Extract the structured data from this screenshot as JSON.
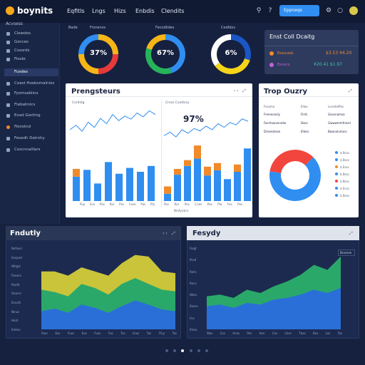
{
  "app": {
    "logo": "boynits"
  },
  "nav": [
    "Eqfitls",
    "Lngs",
    "Hizs",
    "Enbdis",
    "Clendits"
  ],
  "topbar": {
    "primary_button": "Eppneqs",
    "icons": [
      "search-icon",
      "help-icon",
      "settings-icon",
      "notification-icon"
    ]
  },
  "sidebar": {
    "heading": "Acvsess",
    "items": [
      {
        "label": "Clewdos"
      },
      {
        "label": "Gsnces"
      },
      {
        "label": "Cossrds"
      },
      {
        "label": "Fiosbr"
      }
    ],
    "section": "Fusdes",
    "items2": [
      {
        "label": "Coast Hoxbomalnios"
      },
      {
        "label": "Fyomsalkins"
      },
      {
        "label": "Flebahnics"
      },
      {
        "label": "Exad Gocting"
      },
      {
        "label": "Fionstnd"
      },
      {
        "label": "Fesedh Dalrnhy"
      },
      {
        "label": "Coscnnalllars"
      }
    ]
  },
  "donuts": [
    {
      "label_left": "Bade",
      "label_right": "Fronenss",
      "value": "37%",
      "segments": [
        0.25,
        0.25,
        0.25,
        0.25
      ],
      "colors": [
        "#f6b618",
        "#e63a3a",
        "#f6b618",
        "#2f8ef0"
      ]
    },
    {
      "label_left": "",
      "label_right": "Fecodlides",
      "value": "67%",
      "segments": [
        0.45,
        0.35,
        0.2
      ],
      "colors": [
        "#2f8ef0",
        "#27b35a",
        "#f6b618"
      ]
    },
    {
      "label_left": "",
      "label_right": "Cedldos",
      "value": "6%",
      "segments": [
        0.3,
        0.35,
        0.35
      ],
      "colors": [
        "#1a56c4",
        "#f6d41a",
        "#ffffff"
      ]
    }
  ],
  "top_card": {
    "title": "Enst Coll Dcaitg",
    "rows": [
      {
        "label": "Essscads",
        "value": "$3.53 ¥4.20",
        "color": "#f08a2a"
      },
      {
        "label": "Esnocs",
        "value": "¥20.41 $1.97",
        "color": "#c85fe0"
      }
    ]
  },
  "perf_panel": {
    "title": "Prengsteurs",
    "left_label": "Cordidg",
    "right_label": "Cross Couttory",
    "big_value": "97%",
    "x_labels": [
      "Puy",
      "Eco",
      "Pos",
      "Rar",
      "Pos",
      "Cnes",
      "Pos",
      "Pla",
      "Fos",
      "Pos"
    ],
    "footer": "Bisfyvkrs",
    "line1": [
      30,
      36,
      28,
      40,
      33,
      45,
      38,
      50,
      42,
      48,
      44,
      52,
      47,
      55,
      50
    ],
    "line2": [
      24,
      30,
      22,
      34,
      28,
      36,
      32,
      40,
      34,
      44,
      38,
      46,
      42,
      52,
      48
    ],
    "bars_left": [
      {
        "blue": 25,
        "orange": 8
      },
      {
        "blue": 32,
        "orange": 0
      },
      {
        "blue": 18,
        "orange": 0
      },
      {
        "blue": 40,
        "orange": 0
      },
      {
        "blue": 28,
        "orange": 0
      },
      {
        "blue": 34,
        "orange": 0
      },
      {
        "blue": 30,
        "orange": 0
      },
      {
        "blue": 36,
        "orange": 0
      }
    ],
    "bars_right": [
      {
        "blue": 10,
        "orange": 10
      },
      {
        "blue": 36,
        "orange": 8
      },
      {
        "blue": 48,
        "orange": 8
      },
      {
        "blue": 58,
        "orange": 18
      },
      {
        "blue": 35,
        "orange": 12
      },
      {
        "blue": 42,
        "orange": 10
      },
      {
        "blue": 30,
        "orange": 0
      },
      {
        "blue": 40,
        "orange": 10
      },
      {
        "blue": 72,
        "orange": 0
      }
    ]
  },
  "top_quality": {
    "title": "Trop Ouzry",
    "columns": [
      "Fssomo",
      "Elloo",
      "Lessitelflos"
    ],
    "rows": [
      [
        "Fremenesly",
        "Flnfs",
        "Gensnamsa"
      ],
      [
        "Fasnhaavonnbe",
        "Dass",
        "Gwwwmmfnesd"
      ],
      [
        "Dreoesbsse",
        "Elless",
        "Bwacolulrans"
      ]
    ],
    "pie": [
      {
        "value": 35,
        "color": "#f2453d"
      },
      {
        "value": 65,
        "color": "#2f8ef0"
      }
    ],
    "legend": [
      "$ Bcss",
      "$ Bsss",
      "$ Esss",
      "$ Bsss",
      "$ Bsss",
      "$ Ecss",
      "$ Bsss"
    ],
    "legend_colors": [
      "#2f8ef0",
      "#2f8ef0",
      "#f08a2a",
      "#2f8ef0",
      "#f2453d",
      "#2f8ef0",
      "#2f8ef0"
    ]
  },
  "bottom_left": {
    "title": "Fndutly",
    "y_labels": [
      "Befasol",
      "Eoopod",
      "Wtigst",
      "Fiwwcs",
      "Reofd",
      "Oeonsi",
      "Exnofs",
      "Ninus",
      "Hoid",
      "Emtos"
    ],
    "x_labels": [
      "Fiwn",
      "Eos",
      "Fues",
      "Eos",
      "Fues",
      "Fos",
      "Tus",
      "Esos",
      "Tas",
      "Ffuy",
      "Tos"
    ],
    "series": [
      {
        "name": "yellow",
        "color": "#c9c43a",
        "values": [
          70,
          70,
          65,
          75,
          70,
          65,
          80,
          90,
          88,
          70,
          68
        ]
      },
      {
        "name": "green",
        "color": "#2aa86a",
        "values": [
          48,
          45,
          40,
          55,
          50,
          42,
          55,
          62,
          55,
          48,
          46
        ]
      },
      {
        "name": "blue",
        "color": "#2a6fd8",
        "values": [
          22,
          25,
          20,
          30,
          26,
          20,
          28,
          35,
          30,
          24,
          22
        ]
      }
    ]
  },
  "bottom_right": {
    "title": "Fesydy",
    "legend": "Bcsssee",
    "y_labels": [
      "Fiogt",
      "Posd",
      "Rohs",
      "Rons",
      "Woss",
      "Rosos",
      "Fos",
      "Rlsso"
    ],
    "x_labels": [
      "Wos",
      "Cos",
      "Anos",
      "Pos",
      "Hen",
      "Cos",
      "Lhes",
      "Tbas",
      "Bes",
      "Les",
      "Tes"
    ],
    "series": [
      {
        "name": "green",
        "color": "#2aa86a",
        "values": [
          40,
          42,
          38,
          48,
          44,
          52,
          58,
          66,
          78,
          72,
          88
        ]
      },
      {
        "name": "blue",
        "color": "#2a6fd8",
        "values": [
          28,
          30,
          26,
          32,
          30,
          36,
          38,
          42,
          48,
          44,
          50
        ]
      }
    ]
  },
  "pager": {
    "dots": 6,
    "active": 2
  }
}
